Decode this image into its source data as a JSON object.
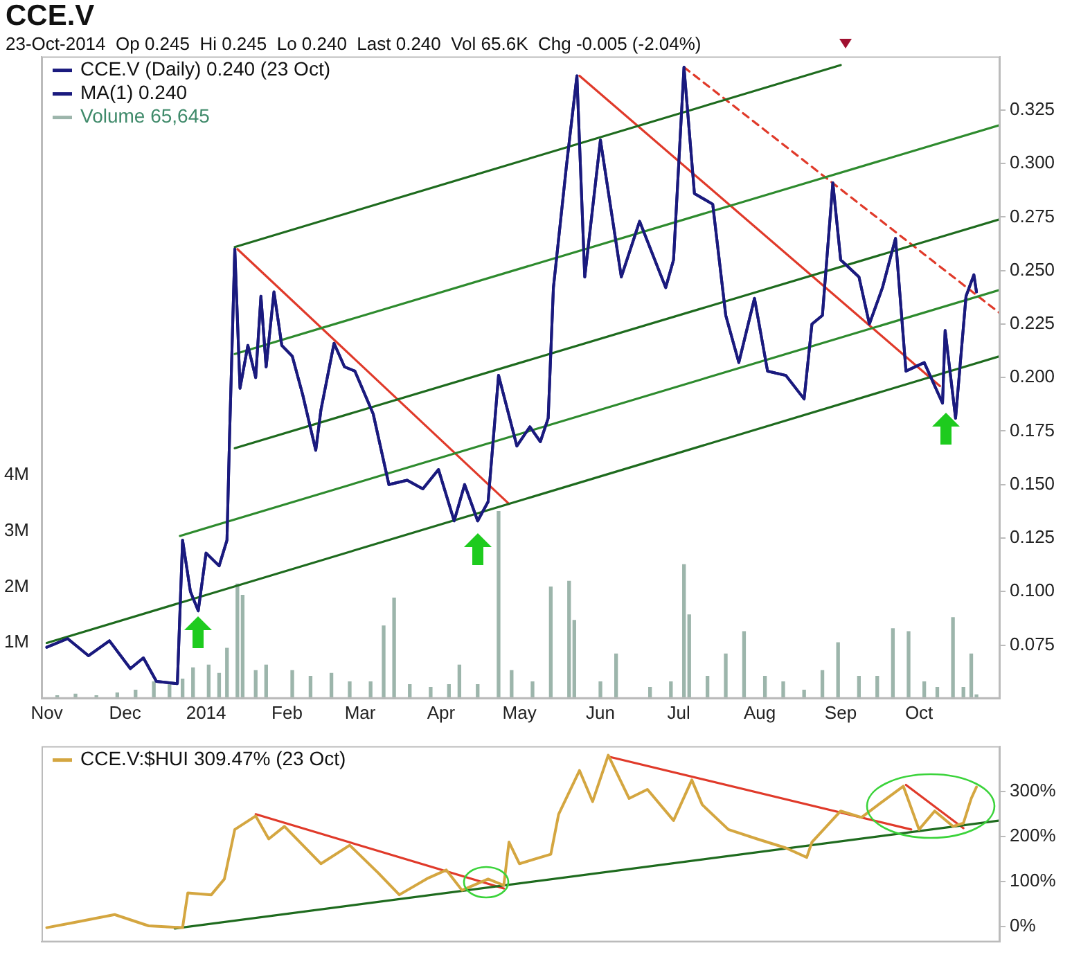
{
  "chart_data": [
    {
      "type": "line",
      "title": "CCE.V",
      "subtitle": "23-Oct-2014  Op 0.245  Hi 0.245  Lo 0.240  Last 0.240  Vol 65.6K  Chg -0.005 (-2.04%)",
      "legend": "top left",
      "marker": "none",
      "xlim": [
        "2013-10-30",
        "2014-11-01"
      ],
      "xticks": [
        {
          "value": "2013-11-01",
          "label": "Nov"
        },
        {
          "value": "2013-12-01",
          "label": "Dec"
        },
        {
          "value": "2014-01-01",
          "label": "2014"
        },
        {
          "value": "2014-02-01",
          "label": "Feb"
        },
        {
          "value": "2014-03-01",
          "label": "Mar"
        },
        {
          "value": "2014-04-01",
          "label": "Apr"
        },
        {
          "value": "2014-05-01",
          "label": "May"
        },
        {
          "value": "2014-06-01",
          "label": "Jun"
        },
        {
          "value": "2014-07-01",
          "label": "Jul"
        },
        {
          "value": "2014-08-01",
          "label": "Aug"
        },
        {
          "value": "2014-09-01",
          "label": "Sep"
        },
        {
          "value": "2014-10-01",
          "label": "Oct"
        }
      ],
      "ylim": [
        0.05,
        0.35
      ],
      "yticks": [
        0.075,
        {
          "value": 0.1,
          "label": "0.100"
        },
        0.125,
        {
          "value": 0.15,
          "label": "0.150"
        },
        0.175,
        {
          "value": 0.2,
          "label": "0.200"
        },
        0.225,
        {
          "value": 0.25,
          "label": "0.250"
        },
        0.275,
        {
          "value": 0.3,
          "label": "0.300"
        },
        0.325
      ],
      "y2lim": [
        0,
        11500000
      ],
      "y2ticks": [
        {
          "value": 1000000,
          "label": "1M"
        },
        {
          "value": 2000000,
          "label": "2M"
        },
        {
          "value": 3000000,
          "label": "3M"
        },
        {
          "value": 4000000,
          "label": "4M"
        }
      ],
      "x": [
        "2013-11-01",
        "2013-11-09",
        "2013-11-17",
        "2013-11-25",
        "2013-12-03",
        "2013-12-08",
        "2013-12-13",
        "2013-12-21",
        "2013-12-23",
        "2013-12-26",
        "2013-12-29",
        "2014-01-01",
        "2014-01-06",
        "2014-01-09",
        "2014-01-10",
        "2014-01-12",
        "2014-01-14",
        "2014-01-17",
        "2014-01-20",
        "2014-01-22",
        "2014-01-24",
        "2014-01-27",
        "2014-01-30",
        "2014-02-03",
        "2014-02-07",
        "2014-02-12",
        "2014-02-14",
        "2014-02-19",
        "2014-02-23",
        "2014-02-27",
        "2014-03-06",
        "2014-03-12",
        "2014-03-19",
        "2014-03-25",
        "2014-03-31",
        "2014-04-06",
        "2014-04-10",
        "2014-04-15",
        "2014-04-19",
        "2014-04-23",
        "2014-04-30",
        "2014-05-05",
        "2014-05-09",
        "2014-05-12",
        "2014-05-14",
        "2014-05-19",
        "2014-05-23",
        "2014-05-26",
        "2014-06-01",
        "2014-06-09",
        "2014-06-16",
        "2014-06-26",
        "2014-06-29",
        "2014-07-03",
        "2014-07-07",
        "2014-07-14",
        "2014-07-19",
        "2014-07-24",
        "2014-07-30",
        "2014-08-04",
        "2014-08-11",
        "2014-08-18",
        "2014-08-21",
        "2014-08-25",
        "2014-08-29",
        "2014-09-01",
        "2014-09-08",
        "2014-09-12",
        "2014-09-17",
        "2014-09-22",
        "2014-09-26",
        "2014-10-03",
        "2014-10-10",
        "2014-10-11",
        "2014-10-15",
        "2014-10-19",
        "2014-10-22",
        "2014-10-23"
      ],
      "series": [
        {
          "name": "CCE.V (Daily) 0.240 (23 Oct)",
          "color": "#1a1a7e",
          "values": [
            0.074,
            0.078,
            0.07,
            0.077,
            0.064,
            0.069,
            0.058,
            0.057,
            0.124,
            0.1,
            0.091,
            0.118,
            0.112,
            0.124,
            0.173,
            0.26,
            0.195,
            0.215,
            0.2,
            0.238,
            0.205,
            0.24,
            0.215,
            0.21,
            0.192,
            0.166,
            0.185,
            0.216,
            0.205,
            0.203,
            0.183,
            0.15,
            0.152,
            0.148,
            0.157,
            0.133,
            0.15,
            0.133,
            0.142,
            0.201,
            0.168,
            0.177,
            0.17,
            0.181,
            0.242,
            0.299,
            0.341,
            0.247,
            0.311,
            0.247,
            0.273,
            0.242,
            0.255,
            0.345,
            0.286,
            0.281,
            0.229,
            0.207,
            0.237,
            0.203,
            0.201,
            0.19,
            0.225,
            0.229,
            0.291,
            0.255,
            0.247,
            0.225,
            0.242,
            0.265,
            0.203,
            0.207,
            0.188,
            0.222,
            0.181,
            0.238,
            0.248,
            0.24
          ]
        },
        {
          "name": "MA(1) 0.240",
          "color": "#1a1a7e",
          "values": [
            0.074,
            0.078,
            0.07,
            0.077,
            0.064,
            0.069,
            0.058,
            0.057,
            0.124,
            0.1,
            0.091,
            0.118,
            0.112,
            0.124,
            0.173,
            0.26,
            0.195,
            0.215,
            0.2,
            0.238,
            0.205,
            0.24,
            0.215,
            0.21,
            0.192,
            0.166,
            0.185,
            0.216,
            0.205,
            0.203,
            0.183,
            0.15,
            0.152,
            0.148,
            0.157,
            0.133,
            0.15,
            0.133,
            0.142,
            0.201,
            0.168,
            0.177,
            0.17,
            0.181,
            0.242,
            0.299,
            0.341,
            0.247,
            0.311,
            0.247,
            0.273,
            0.242,
            0.255,
            0.345,
            0.286,
            0.281,
            0.229,
            0.207,
            0.237,
            0.203,
            0.201,
            0.19,
            0.225,
            0.229,
            0.291,
            0.255,
            0.247,
            0.225,
            0.242,
            0.265,
            0.203,
            0.207,
            0.188,
            0.222,
            0.181,
            0.238,
            0.248,
            0.24
          ]
        },
        {
          "name": "Volume 65,645",
          "type": "bar",
          "axis": "y2",
          "color": "#9cb5ab",
          "x": [
            "2013-11-05",
            "2013-11-12",
            "2013-11-20",
            "2013-11-28",
            "2013-12-05",
            "2013-12-12",
            "2013-12-18",
            "2013-12-23",
            "2013-12-27",
            "2014-01-02",
            "2014-01-06",
            "2014-01-09",
            "2014-01-13",
            "2014-01-15",
            "2014-01-20",
            "2014-01-24",
            "2014-02-03",
            "2014-02-10",
            "2014-02-18",
            "2014-02-25",
            "2014-03-05",
            "2014-03-10",
            "2014-03-14",
            "2014-03-20",
            "2014-03-28",
            "2014-04-04",
            "2014-04-08",
            "2014-04-15",
            "2014-04-23",
            "2014-04-28",
            "2014-05-06",
            "2014-05-13",
            "2014-05-20",
            "2014-05-22",
            "2014-06-01",
            "2014-06-07",
            "2014-06-20",
            "2014-06-28",
            "2014-07-03",
            "2014-07-05",
            "2014-07-12",
            "2014-07-19",
            "2014-07-26",
            "2014-08-03",
            "2014-08-10",
            "2014-08-18",
            "2014-08-25",
            "2014-08-31",
            "2014-09-08",
            "2014-09-15",
            "2014-09-21",
            "2014-09-27",
            "2014-10-03",
            "2014-10-08",
            "2014-10-14",
            "2014-10-18",
            "2014-10-21",
            "2014-10-23"
          ],
          "values": [
            50000,
            80000,
            50000,
            100000,
            150000,
            300000,
            250000,
            350000,
            550000,
            600000,
            450000,
            900000,
            2050000,
            1850000,
            500000,
            600000,
            500000,
            400000,
            450000,
            300000,
            300000,
            1300000,
            1800000,
            250000,
            200000,
            250000,
            600000,
            250000,
            3350000,
            500000,
            300000,
            2000000,
            2100000,
            1400000,
            300000,
            800000,
            200000,
            300000,
            2400000,
            1500000,
            400000,
            800000,
            1200000,
            400000,
            300000,
            150000,
            500000,
            1000000,
            400000,
            400000,
            1250000,
            1200000,
            300000,
            200000,
            1450000,
            200000,
            800000,
            65645
          ]
        },
        {
          "color": "#1e6b1e",
          "x": [
            "2013-11-01",
            "2014-11-01"
          ],
          "values": [
            0.076,
            0.21
          ]
        },
        {
          "color": "#1e6b1e",
          "x": [
            "2014-01-12",
            "2014-11-01"
          ],
          "values": [
            0.167,
            0.274
          ]
        },
        {
          "color": "#1e6b1e",
          "x": [
            "2014-01-12",
            "2014-09-01"
          ],
          "values": [
            0.261,
            0.346
          ]
        },
        {
          "color": "#2e8b2e",
          "x": [
            "2013-12-22",
            "2014-11-01"
          ],
          "values": [
            0.126,
            0.241
          ]
        },
        {
          "color": "#2e8b2e",
          "x": [
            "2014-01-12",
            "2014-11-01"
          ],
          "values": [
            0.211,
            0.318
          ]
        },
        {
          "color": "#e03a2a",
          "x": [
            "2014-01-13",
            "2014-04-27"
          ],
          "values": [
            0.26,
            0.141
          ]
        },
        {
          "color": "#e03a2a",
          "x": [
            "2014-05-24",
            "2014-10-09"
          ],
          "values": [
            0.341,
            0.196
          ]
        },
        {
          "color": "#e03a2a",
          "line_style": "dashed",
          "x": [
            "2014-07-03",
            "2014-11-01"
          ],
          "values": [
            0.345,
            0.23
          ]
        }
      ]
    },
    {
      "type": "line",
      "legend": "top left",
      "marker": "none",
      "tick_labels": "y",
      "xlim": [
        "2013-10-30",
        "2014-11-01"
      ],
      "ylim": [
        -35,
        400
      ],
      "yticks": [
        {
          "value": 0,
          "label": "0%"
        },
        {
          "value": 100,
          "label": "100%"
        },
        {
          "value": 200,
          "label": "200%"
        },
        {
          "value": 300,
          "label": "300%"
        }
      ],
      "series": [
        {
          "name": "CCE.V:$HUI 309.47% (23 Oct)",
          "color": "#d4a640",
          "x": [
            "2013-11-01",
            "2013-11-11",
            "2013-11-27",
            "2013-12-10",
            "2013-12-23",
            "2013-12-25",
            "2014-01-03",
            "2014-01-08",
            "2014-01-12",
            "2014-01-20",
            "2014-01-25",
            "2014-01-31",
            "2014-02-14",
            "2014-02-25",
            "2014-03-08",
            "2014-03-16",
            "2014-03-27",
            "2014-04-03",
            "2014-04-09",
            "2014-04-19",
            "2014-04-25",
            "2014-04-27",
            "2014-05-01",
            "2014-05-13",
            "2014-05-16",
            "2014-05-24",
            "2014-05-29",
            "2014-06-04",
            "2014-06-12",
            "2014-06-19",
            "2014-06-29",
            "2014-07-06",
            "2014-07-10",
            "2014-07-20",
            "2014-07-31",
            "2014-08-11",
            "2014-08-19",
            "2014-08-21",
            "2014-09-01",
            "2014-09-09",
            "2014-09-17",
            "2014-09-25",
            "2014-10-01",
            "2014-10-07",
            "2014-10-14",
            "2014-10-18",
            "2014-10-21",
            "2014-10-23"
          ],
          "values": [
            -3,
            8,
            26,
            1,
            -3,
            74,
            70,
            105,
            215,
            245,
            194,
            222,
            139,
            180,
            118,
            70,
            107,
            125,
            80,
            105,
            91,
            187,
            139,
            160,
            249,
            346,
            277,
            380,
            284,
            304,
            235,
            325,
            270,
            215,
            194,
            174,
            153,
            187,
            256,
            242,
            277,
            311,
            215,
            256,
            222,
            229,
            284,
            309.47
          ]
        },
        {
          "color": "#1e6b1e",
          "x": [
            "2013-12-20",
            "2014-11-01"
          ],
          "values": [
            -5,
            235
          ]
        },
        {
          "color": "#e03a2a",
          "x": [
            "2014-01-20",
            "2014-04-25"
          ],
          "values": [
            249,
            84
          ]
        },
        {
          "color": "#e03a2a",
          "x": [
            "2014-06-04",
            "2014-09-28"
          ],
          "values": [
            377,
            215
          ]
        },
        {
          "color": "#e03a2a",
          "x": [
            "2014-09-26",
            "2014-10-18"
          ],
          "values": [
            314,
            218
          ]
        }
      ]
    }
  ]
}
